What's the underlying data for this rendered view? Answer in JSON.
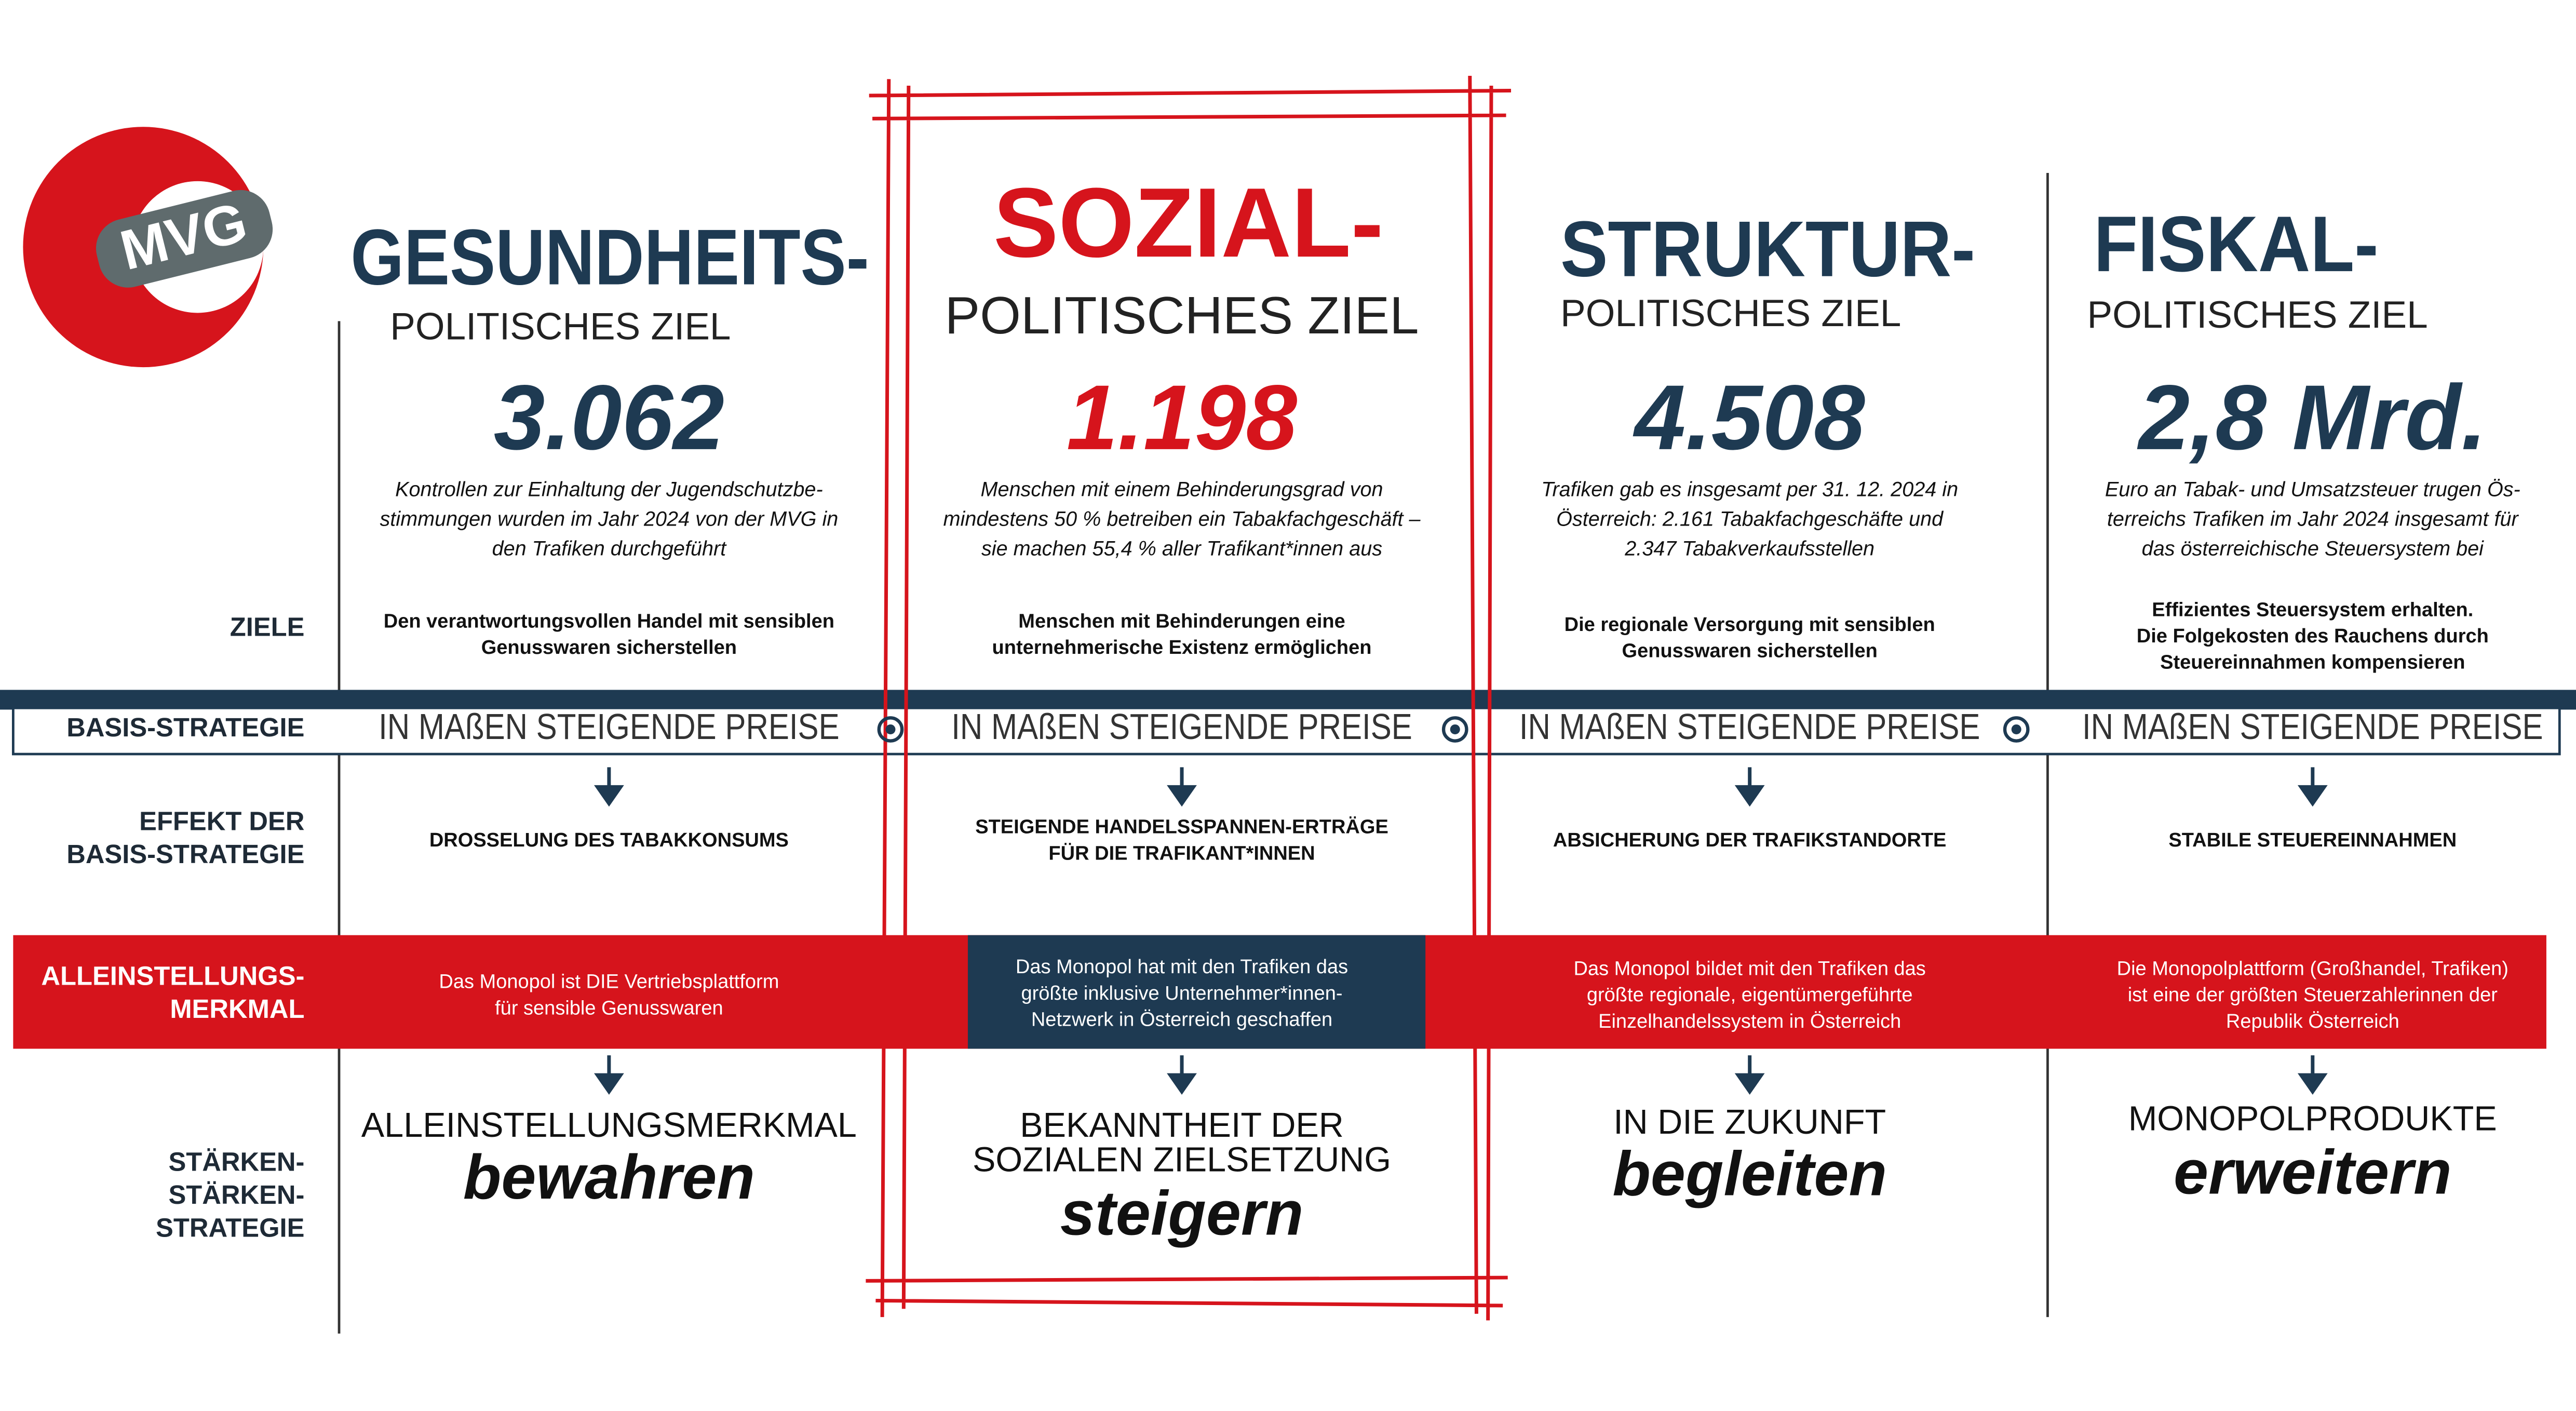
{
  "logo": "MVG",
  "row_labels": {
    "goals": [
      "ZIELE"
    ],
    "basis": [
      "BASIS-STRATEGIE"
    ],
    "effect": [
      "EFFEKT DER",
      "BASIS-STRATEGIE"
    ],
    "usp": [
      "ALLEINSTELLUNGS-",
      "MERKMAL"
    ],
    "strength": [
      "STÄRKEN-",
      "STÄRKEN-",
      "STRATEGIE"
    ]
  },
  "columns": [
    {
      "title": "GESUNDHEITS-",
      "subtitle": "POLITISCHES ZIEL",
      "figure": "3.062",
      "figure_text": [
        "Kontrollen zur Einhaltung der Jugendschutzbe-",
        "stimmungen wurden im Jahr 2024 von der MVG in",
        "den Trafiken durchgeführt"
      ],
      "goal": [
        "Den verantwortungsvollen Handel mit sensiblen",
        "Genusswaren sicherstellen"
      ],
      "basis": "IN MAßEN STEIGENDE PREISE",
      "effect": [
        "DROSSELUNG DES TABAKKONSUMS"
      ],
      "usp": [
        "Das Monopol ist DIE Vertriebsplattform",
        "für sensible Genusswaren"
      ],
      "strength": [
        "ALLEINSTELLUNGSMERKMAL"
      ],
      "strength_verb": "bewahren"
    },
    {
      "title": "SOZIAL-",
      "subtitle": "POLITISCHES ZIEL",
      "figure": "1.198",
      "figure_text": [
        "Menschen mit einem Behinderungsgrad von",
        "mindestens 50 % betreiben ein Tabakfachgeschäft –",
        "sie machen 55,4 % aller Trafikant*innen aus"
      ],
      "goal": [
        "Menschen mit Behinderungen eine",
        "unternehmerische Existenz ermöglichen"
      ],
      "basis": "IN MAßEN STEIGENDE PREISE",
      "effect": [
        "STEIGENDE HANDELSSPANNEN-ERTRÄGE",
        "FÜR DIE TRAFIKANT*INNEN"
      ],
      "usp": [
        "Das Monopol hat mit den Trafiken das",
        "größte inklusive Unternehmer*innen-",
        "Netzwerk in Österreich geschaffen"
      ],
      "strength": [
        "BEKANNTHEIT DER",
        "SOZIALEN ZIELSETZUNG"
      ],
      "strength_verb": "steigern"
    },
    {
      "title": "STRUKTUR-",
      "subtitle": "POLITISCHES ZIEL",
      "figure": "4.508",
      "figure_text": [
        "Trafiken gab es insgesamt per 31. 12. 2024 in",
        "Österreich: 2.161 Tabakfachgeschäfte und",
        "2.347 Tabakverkaufsstellen"
      ],
      "goal": [
        "Die regionale Versorgung mit sensiblen",
        "Genusswaren sicherstellen"
      ],
      "basis": "IN MAßEN STEIGENDE PREISE",
      "effect": [
        "ABSICHERUNG DER TRAFIKSTANDORTE"
      ],
      "usp": [
        "Das Monopol bildet mit den Trafiken das",
        "größte regionale, eigentümergeführte",
        "Einzelhandelssystem in Österreich"
      ],
      "strength": [
        "IN DIE ZUKUNFT"
      ],
      "strength_verb": "begleiten"
    },
    {
      "title": "FISKAL-",
      "subtitle": "POLITISCHES ZIEL",
      "figure": "2,8 Mrd.",
      "figure_text": [
        "Euro an Tabak- und Umsatzsteuer trugen Ös-",
        "terreichs Trafiken im Jahr 2024 insgesamt für",
        "das österreichische Steuersystem bei"
      ],
      "goal": [
        "Effizientes Steuersystem erhalten.",
        "Die Folgekosten des Rauchens durch",
        "Steuereinnahmen kompensieren"
      ],
      "basis": "IN MAßEN STEIGENDE PREISE",
      "effect": [
        "STABILE STEUEREINNAHMEN"
      ],
      "usp": [
        "Die Monopolplattform (Großhandel, Trafiken)",
        "ist eine der größten Steuerzahlerinnen der",
        "Republik Österreich"
      ],
      "strength": [
        "MONOPOLPRODUKTE"
      ],
      "strength_verb": "erweitern"
    }
  ]
}
